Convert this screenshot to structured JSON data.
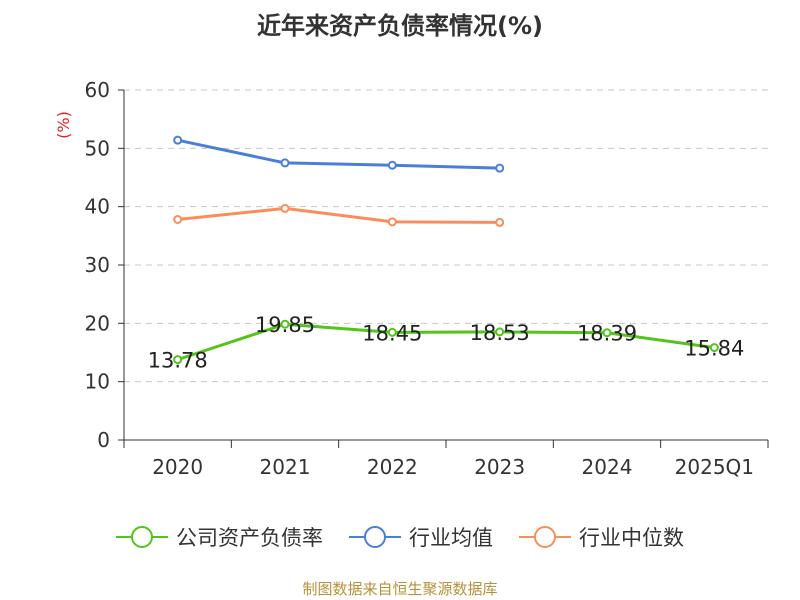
{
  "chart_data": {
    "type": "line",
    "title": "近年来资产负债率情况(%)",
    "ylabel": "(%)",
    "categories": [
      "2020",
      "2021",
      "2022",
      "2023",
      "2024",
      "2025Q1"
    ],
    "ylim": [
      0,
      60
    ],
    "yticks": [
      0,
      10,
      20,
      30,
      40,
      50,
      60
    ],
    "grid": true,
    "legend_position": "bottom",
    "series": [
      {
        "name": "公司资产负债率",
        "color": "#52c41a",
        "values": [
          13.78,
          19.85,
          18.45,
          18.53,
          18.39,
          15.84
        ],
        "show_labels": true
      },
      {
        "name": "行业均值",
        "color": "#4a7fd9",
        "values": [
          51.4,
          47.5,
          47.1,
          46.6,
          null,
          null
        ],
        "show_labels": false
      },
      {
        "name": "行业中位数",
        "color": "#f78e5b",
        "values": [
          37.8,
          39.7,
          37.4,
          37.3,
          null,
          null
        ],
        "show_labels": false
      }
    ]
  },
  "footer": {
    "source": "制图数据来自恒生聚源数据库"
  }
}
